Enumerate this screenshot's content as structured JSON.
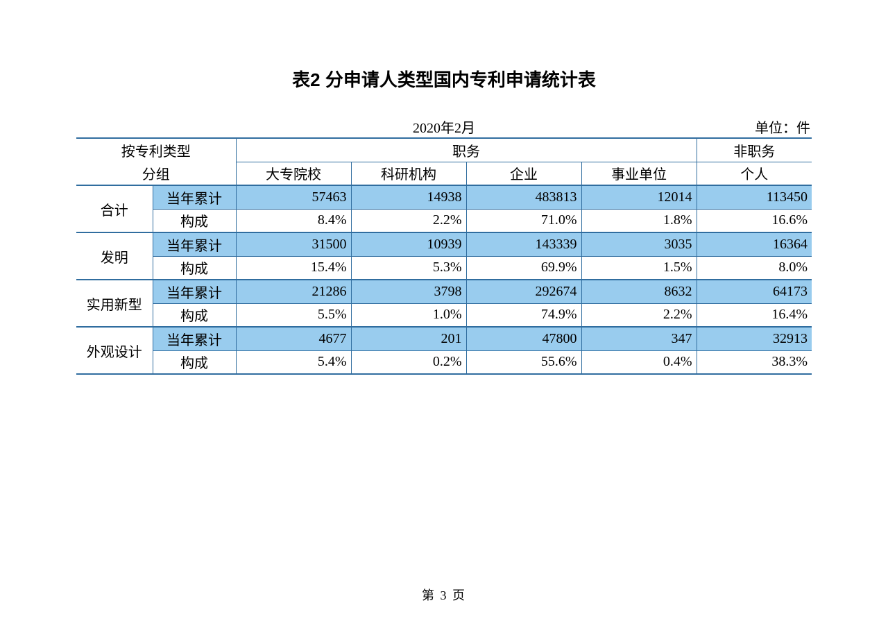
{
  "title": "表2  分申请人类型国内专利申请统计表",
  "date": "2020年2月",
  "unit": "单位：件",
  "header": {
    "group_label_top": "按专利类型",
    "group_label_bottom": "分组",
    "zhiwu": "职务",
    "fei_zhiwu": "非职务",
    "cols": [
      "大专院校",
      "科研机构",
      "企业",
      "事业单位",
      "个人"
    ]
  },
  "sub_labels": {
    "cum": "当年累计",
    "pct": "构成"
  },
  "rows": [
    {
      "name": "合计",
      "cum": [
        "57463",
        "14938",
        "483813",
        "12014",
        "113450"
      ],
      "pct": [
        "8.4%",
        "2.2%",
        "71.0%",
        "1.8%",
        "16.6%"
      ]
    },
    {
      "name": "发明",
      "cum": [
        "31500",
        "10939",
        "143339",
        "3035",
        "16364"
      ],
      "pct": [
        "15.4%",
        "5.3%",
        "69.9%",
        "1.5%",
        "8.0%"
      ]
    },
    {
      "name": "实用新型",
      "cum": [
        "21286",
        "3798",
        "292674",
        "8632",
        "64173"
      ],
      "pct": [
        "5.5%",
        "1.0%",
        "74.9%",
        "2.2%",
        "16.4%"
      ]
    },
    {
      "name": "外观设计",
      "cum": [
        "4677",
        "201",
        "47800",
        "347",
        "32913"
      ],
      "pct": [
        "5.4%",
        "0.2%",
        "55.6%",
        "0.4%",
        "38.3%"
      ]
    }
  ],
  "page_footer": "第 3 页",
  "style": {
    "border_color": "#306d9f",
    "shade_color": "#99ccee",
    "background_color": "#ffffff",
    "title_fontsize": 26,
    "body_fontsize": 20
  }
}
